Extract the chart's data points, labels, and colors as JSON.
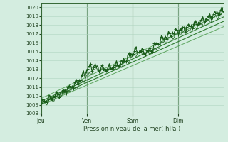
{
  "xlabel": "Pression niveau de la mer( hPa )",
  "ylim": [
    1008,
    1020.5
  ],
  "xlim": [
    0,
    96
  ],
  "yticks": [
    1008,
    1009,
    1010,
    1011,
    1012,
    1013,
    1014,
    1015,
    1016,
    1017,
    1018,
    1019,
    1020
  ],
  "xtick_positions": [
    0,
    24,
    48,
    72
  ],
  "xtick_labels": [
    "Jeu",
    "Ven",
    "Sam",
    "Dim"
  ],
  "bg_color": "#d4ede0",
  "grid_color": "#b0d4c0",
  "line_color_dark": "#1a5c1a",
  "line_color_smooth": "#2d7a2d",
  "line_color_outer": "#4a9a4a"
}
